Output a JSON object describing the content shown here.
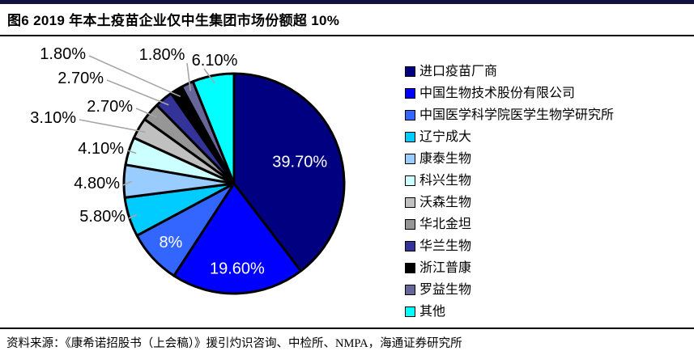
{
  "figure": {
    "title": "图6  2019 年本土疫苗企业仅中生集团市场份额超 10%",
    "source": "资料来源：《康希诺招股书（上会稿）》援引灼识咨询、中检所、NMPA，海通证券研究所"
  },
  "colors": {
    "top_bar": "#12123e",
    "rule": "#000000",
    "leader_line": "#a6a6a6",
    "slice_border": "#000000",
    "label_inside": "#ffffff",
    "label_outside": "#000000"
  },
  "chart_data": {
    "type": "pie",
    "title": "2019 年本土疫苗企业市场份额",
    "values_unit": "%",
    "start_angle_deg": 0,
    "direction": "clockwise",
    "legend_position": "right",
    "series": [
      {
        "name": "进口疫苗厂商",
        "value": 39.7,
        "label": "39.70%",
        "color": "#000080",
        "label_placement": "inside"
      },
      {
        "name": "中国生物技术股份有限公司",
        "value": 19.6,
        "label": "19.60%",
        "color": "#0000FF",
        "label_placement": "inside"
      },
      {
        "name": "中国医学科学院医学生物学研究所",
        "value": 8.0,
        "label": "8%",
        "color": "#3366FF",
        "label_placement": "inside"
      },
      {
        "name": "辽宁成大",
        "value": 5.8,
        "label": "5.80%",
        "color": "#00CCFF",
        "label_placement": "outside"
      },
      {
        "name": "康泰生物",
        "value": 4.8,
        "label": "4.80%",
        "color": "#99CCFF",
        "label_placement": "outside"
      },
      {
        "name": "科兴生物",
        "value": 4.1,
        "label": "4.10%",
        "color": "#CCFFFF",
        "label_placement": "outside"
      },
      {
        "name": "沃森生物",
        "value": 3.1,
        "label": "3.10%",
        "color": "#C0C0C0",
        "label_placement": "outside"
      },
      {
        "name": "华北金坦",
        "value": 2.7,
        "label": "2.70%",
        "color": "#969696",
        "label_placement": "outside"
      },
      {
        "name": "华兰生物",
        "value": 2.7,
        "label": "2.70%",
        "color": "#333399",
        "label_placement": "outside"
      },
      {
        "name": "浙江普康",
        "value": 1.8,
        "label": "1.80%",
        "color": "#000000",
        "label_placement": "outside"
      },
      {
        "name": "罗益生物",
        "value": 1.8,
        "label": "1.80%",
        "color": "#666699",
        "label_placement": "outside"
      },
      {
        "name": "其他",
        "value": 6.1,
        "label": "6.10%",
        "color": "#00FFFF",
        "label_placement": "outside"
      }
    ]
  }
}
